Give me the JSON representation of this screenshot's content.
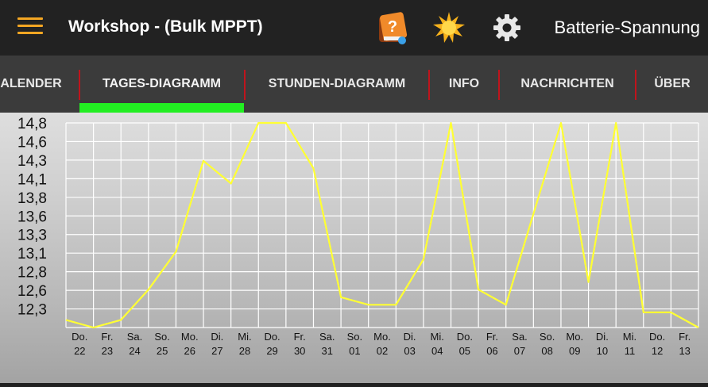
{
  "appbar": {
    "title": "Workshop - (Bulk MPPT)",
    "value_label": "Batterie-Spannung",
    "icons": [
      "menu-icon",
      "help-book-icon",
      "sun-icon",
      "gear-icon"
    ],
    "accent_color": "#f4a623"
  },
  "tabs": [
    {
      "label": "ALENDER"
    },
    {
      "label": "TAGES-DIAGRAMM",
      "selected": true
    },
    {
      "label": "STUNDEN-DIAGRAMM"
    },
    {
      "label": "INFO"
    },
    {
      "label": "NACHRICHTEN"
    },
    {
      "label": "ÜBER"
    }
  ],
  "tab_indicator_color": "#22ee22",
  "tab_separator_color": "#c0141c",
  "chart_data": {
    "type": "line",
    "line_color": "#ffff33",
    "grid": true,
    "ylim": [
      12.1,
      14.8
    ],
    "y_ticks": [
      "12,3",
      "12,6",
      "12,8",
      "13,1",
      "13,3",
      "13,6",
      "13,8",
      "14,1",
      "14,3",
      "14,6",
      "14,8"
    ],
    "x": [
      {
        "day": "",
        "date": ""
      },
      {
        "day": "Do.",
        "date": "22"
      },
      {
        "day": "Fr.",
        "date": "23"
      },
      {
        "day": "Sa.",
        "date": "24"
      },
      {
        "day": "So.",
        "date": "25"
      },
      {
        "day": "Mo.",
        "date": "26"
      },
      {
        "day": "Di.",
        "date": "27"
      },
      {
        "day": "Mi.",
        "date": "28"
      },
      {
        "day": "Do.",
        "date": "29"
      },
      {
        "day": "Fr.",
        "date": "30"
      },
      {
        "day": "Sa.",
        "date": "31"
      },
      {
        "day": "So.",
        "date": "01"
      },
      {
        "day": "Mo.",
        "date": "02"
      },
      {
        "day": "Di.",
        "date": "03"
      },
      {
        "day": "Mi.",
        "date": "04"
      },
      {
        "day": "Do.",
        "date": "05"
      },
      {
        "day": "Fr.",
        "date": "06"
      },
      {
        "day": "Sa.",
        "date": "07"
      },
      {
        "day": "So.",
        "date": "08"
      },
      {
        "day": "Mo.",
        "date": "09"
      },
      {
        "day": "Di.",
        "date": "10"
      },
      {
        "day": "Mi.",
        "date": "11"
      },
      {
        "day": "Do.",
        "date": "12"
      },
      {
        "day": "Fr.",
        "date": "13"
      }
    ],
    "values": [
      12.2,
      12.1,
      12.2,
      12.6,
      13.1,
      14.3,
      14.0,
      14.8,
      14.8,
      14.2,
      12.5,
      12.4,
      12.4,
      13.0,
      14.8,
      12.6,
      12.4,
      13.6,
      14.8,
      12.7,
      14.8,
      12.3,
      12.3,
      12.1
    ]
  }
}
